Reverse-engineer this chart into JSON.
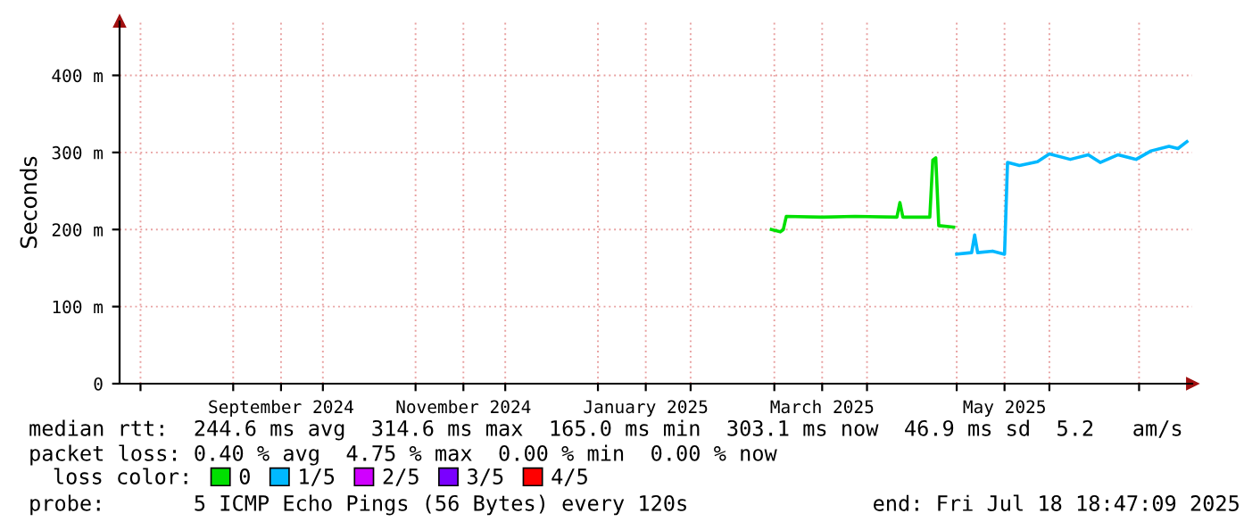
{
  "chart_data": {
    "type": "line",
    "ylabel": "Seconds",
    "xlim": [
      "2024-07-25",
      "2025-07-18T18:47"
    ],
    "ylim": [
      0,
      470
    ],
    "yticks": [
      {
        "value": 0,
        "label": "0"
      },
      {
        "value": 100,
        "label": "100 m"
      },
      {
        "value": 200,
        "label": "200 m"
      },
      {
        "value": 300,
        "label": "300 m"
      },
      {
        "value": 400,
        "label": "400 m"
      }
    ],
    "xticks": [
      {
        "value": "2024-08-01",
        "label": null
      },
      {
        "value": "2024-09-01",
        "label": null
      },
      {
        "value": "2024-09-17",
        "label": "September 2024"
      },
      {
        "value": "2024-10-01",
        "label": null
      },
      {
        "value": "2024-11-01",
        "label": null
      },
      {
        "value": "2024-11-17",
        "label": "November 2024"
      },
      {
        "value": "2024-12-01",
        "label": null
      },
      {
        "value": "2025-01-01",
        "label": null
      },
      {
        "value": "2025-01-17",
        "label": "January 2025"
      },
      {
        "value": "2025-02-01",
        "label": null
      },
      {
        "value": "2025-03-01",
        "label": null
      },
      {
        "value": "2025-03-17",
        "label": "March 2025"
      },
      {
        "value": "2025-04-01",
        "label": null
      },
      {
        "value": "2025-05-01",
        "label": null
      },
      {
        "value": "2025-05-17",
        "label": "May 2025"
      },
      {
        "value": "2025-06-01",
        "label": null
      },
      {
        "value": "2025-07-01",
        "label": null
      }
    ],
    "grid": true,
    "legend": "bottom",
    "legend_title": "loss color:",
    "x": [
      "2025-02-28",
      "2025-03-03",
      "2025-03-04",
      "2025-03-05",
      "2025-03-17",
      "2025-03-28",
      "2025-04-11",
      "2025-04-12",
      "2025-04-13",
      "2025-04-22",
      "2025-04-23",
      "2025-04-24",
      "2025-04-25",
      "2025-04-30",
      "2025-05-01",
      "2025-05-06",
      "2025-05-07",
      "2025-05-08",
      "2025-05-13",
      "2025-05-17",
      "2025-05-18",
      "2025-05-22",
      "2025-05-28",
      "2025-06-01",
      "2025-06-08",
      "2025-06-14",
      "2025-06-18",
      "2025-06-24",
      "2025-06-30",
      "2025-07-05",
      "2025-07-11",
      "2025-07-14",
      "2025-07-17"
    ],
    "series": [
      {
        "name": "0",
        "color": "#00e000",
        "values": [
          200,
          197,
          200,
          217,
          216,
          217,
          216,
          235,
          216,
          216,
          290,
          293,
          205,
          203,
          null,
          null,
          null,
          null,
          null,
          null,
          null,
          null,
          null,
          null,
          null,
          null,
          null,
          null,
          null,
          null,
          null,
          null,
          null
        ]
      },
      {
        "name": "1/5",
        "color": "#00b8ff",
        "values": [
          null,
          null,
          null,
          null,
          null,
          null,
          null,
          null,
          null,
          null,
          null,
          null,
          null,
          null,
          168,
          170,
          193,
          170,
          172,
          168,
          287,
          283,
          288,
          298,
          291,
          297,
          287,
          297,
          291,
          302,
          308,
          305,
          314
        ]
      },
      {
        "name": "2/5",
        "color": "#d000ff",
        "values": [
          null,
          null,
          null,
          null,
          null,
          null,
          null,
          null,
          null,
          null,
          null,
          null,
          null,
          null,
          null,
          null,
          null,
          null,
          null,
          null,
          null,
          null,
          null,
          null,
          null,
          null,
          null,
          null,
          null,
          null,
          null,
          null,
          null
        ]
      },
      {
        "name": "3/5",
        "color": "#7a00ff",
        "values": [
          null,
          null,
          null,
          null,
          null,
          null,
          null,
          null,
          null,
          null,
          null,
          null,
          null,
          null,
          null,
          null,
          null,
          null,
          null,
          null,
          null,
          null,
          null,
          null,
          null,
          null,
          null,
          null,
          null,
          null,
          null,
          null,
          null
        ]
      },
      {
        "name": "4/5",
        "color": "#ff0000",
        "values": [
          null,
          null,
          null,
          null,
          null,
          null,
          null,
          null,
          null,
          null,
          null,
          null,
          null,
          null,
          null,
          null,
          null,
          null,
          null,
          null,
          null,
          null,
          null,
          null,
          null,
          null,
          null,
          null,
          null,
          null,
          null,
          null,
          null
        ]
      }
    ],
    "annotations": [
      "median rtt:  244.6 ms avg  314.6 ms max  165.0 ms min  303.1 ms now  46.9 ms sd  5.2   am/s",
      "packet loss: 0.40 % avg  4.75 % max  0.00 % min  0.00 % now",
      "probe:       5 ICMP Echo Pings (56 Bytes) every 120s",
      "end: Fri Jul 18 18:47:09 2025"
    ]
  }
}
